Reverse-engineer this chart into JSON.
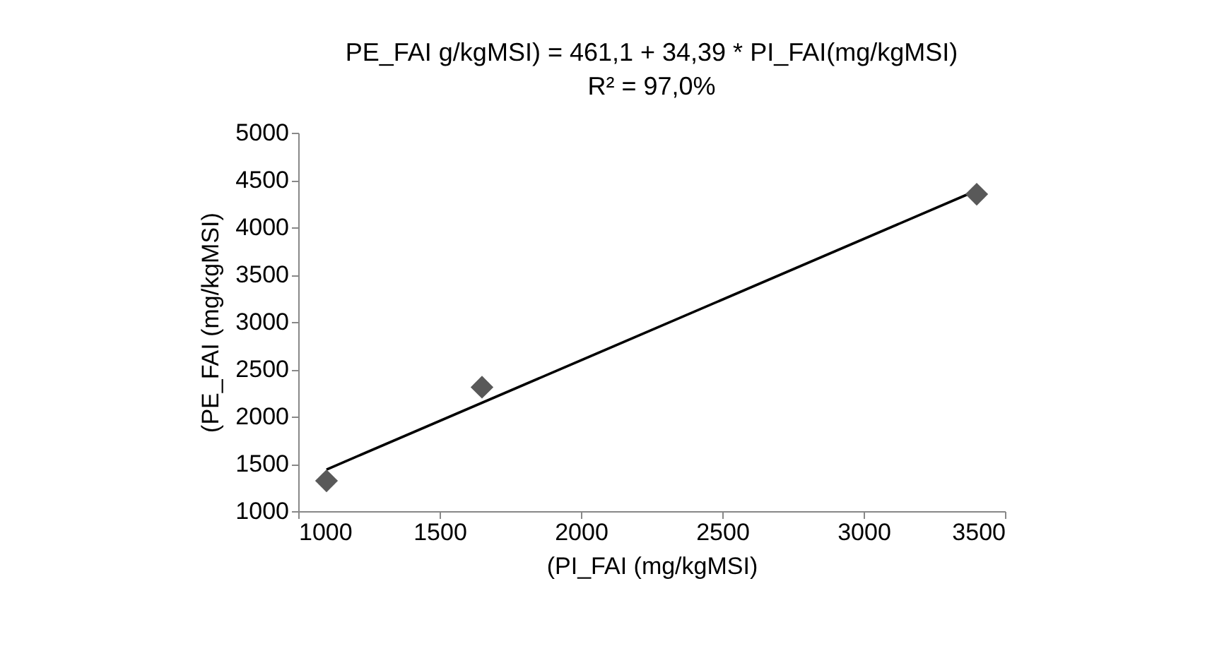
{
  "chart_data": {
    "type": "scatter",
    "title": [
      "PE_FAI g/kgMSI) = 461,1 + 34,39 * PI_FAI(mg/kgMSI)",
      "R² = 97,0%"
    ],
    "xlabel": "(PI_FAI (mg/kgMSI)",
    "ylabel": "(PE_FAI (mg/kgMSI)",
    "series": [
      {
        "color": "#595959",
        "marker": "diamond",
        "x": [
          1100,
          1650,
          3400
        ],
        "values": [
          1320,
          2310,
          4350
        ]
      },
      {
        "type": "line",
        "color": "#000000",
        "line_style": "solid",
        "x": [
          1100,
          3400
        ],
        "values": [
          1440,
          4390
        ]
      }
    ],
    "xlim": [
      1000,
      3500
    ],
    "xticks": [
      1000,
      1500,
      2000,
      2500,
      3000,
      3500
    ],
    "ylim": [
      1000,
      5000
    ],
    "yticks": [
      1000,
      1500,
      2000,
      2500,
      3000,
      3500,
      4000,
      4500,
      5000
    ],
    "grid": false
  }
}
